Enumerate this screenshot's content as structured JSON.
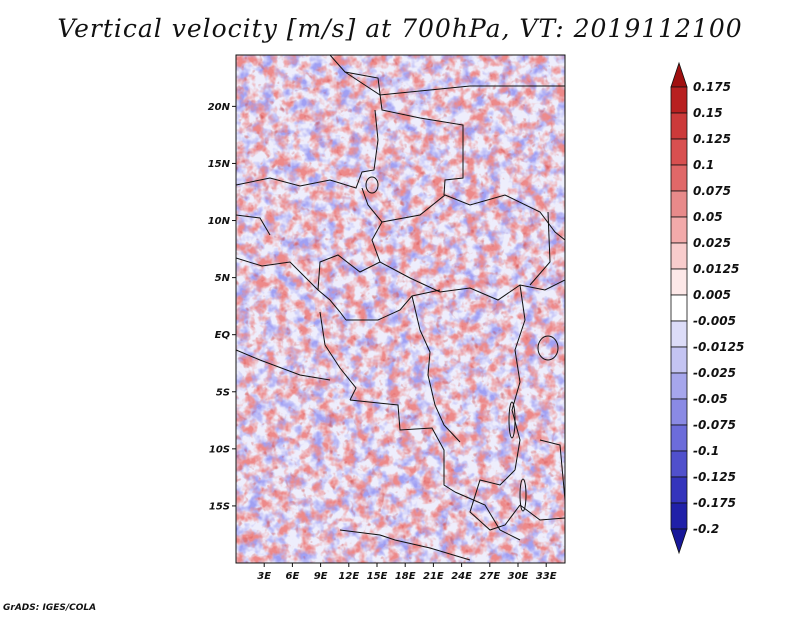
{
  "title": "Vertical velocity [m/s] at 700hPa, VT: 2019112100",
  "credit": "GrADS: IGES/COLA",
  "map": {
    "lat_labels": [
      "20N",
      "15N",
      "10N",
      "5N",
      "EQ",
      "5S",
      "10S",
      "15S"
    ],
    "lat_values": [
      20,
      15,
      10,
      5,
      0,
      -5,
      -10,
      -15
    ],
    "lon_labels": [
      "3E",
      "6E",
      "9E",
      "12E",
      "15E",
      "18E",
      "21E",
      "24E",
      "27E",
      "30E",
      "33E"
    ],
    "lon_values": [
      3,
      6,
      9,
      12,
      15,
      18,
      21,
      24,
      27,
      30,
      33
    ],
    "lat_range": [
      -20,
      24.5
    ],
    "lon_range": [
      0,
      35
    ]
  },
  "colorbar": {
    "labels": [
      "0.175",
      "0.15",
      "0.125",
      "0.1",
      "0.075",
      "0.05",
      "0.025",
      "0.0125",
      "0.005",
      "-0.005",
      "-0.0125",
      "-0.025",
      "-0.05",
      "-0.075",
      "-0.1",
      "-0.125",
      "-0.175",
      "-0.2"
    ],
    "colors": [
      "#a01010",
      "#b82020",
      "#cc3a3a",
      "#d85050",
      "#e06868",
      "#e88a8a",
      "#f2aaaa",
      "#f8cccc",
      "#fde8e8",
      "#ffffff",
      "#dcdcf8",
      "#c4c4f2",
      "#a6a6ec",
      "#8a8ae4",
      "#6c6cda",
      "#5050cc",
      "#3434bc",
      "#2020a8",
      "#18189a"
    ]
  }
}
